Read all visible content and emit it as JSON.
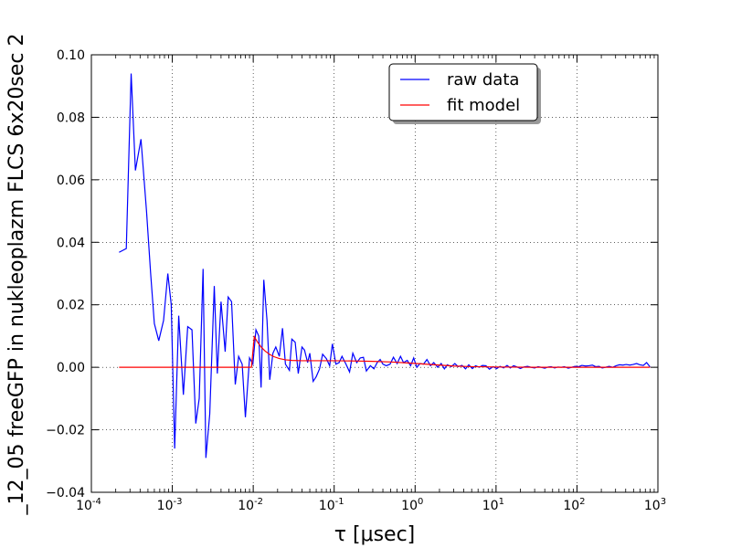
{
  "chart_data": {
    "type": "line",
    "title": "",
    "xlabel": "τ [μsec]",
    "ylabel": "_12_05 freeGFP in nukleoplazm FLCS 6x20sec 2",
    "xscale": "log",
    "xlim": [
      0.0001,
      1000
    ],
    "ylim": [
      -0.04,
      0.1
    ],
    "grid": true,
    "legend_position": "top-right",
    "x_ticks": [
      {
        "value": 0.0001,
        "base": "10",
        "exp": "-4"
      },
      {
        "value": 0.001,
        "base": "10",
        "exp": "-3"
      },
      {
        "value": 0.01,
        "base": "10",
        "exp": "-2"
      },
      {
        "value": 0.1,
        "base": "10",
        "exp": "-1"
      },
      {
        "value": 1,
        "base": "10",
        "exp": "0"
      },
      {
        "value": 10,
        "base": "10",
        "exp": "1"
      },
      {
        "value": 100,
        "base": "10",
        "exp": "2"
      },
      {
        "value": 1000,
        "base": "10",
        "exp": "3"
      }
    ],
    "y_ticks": [
      {
        "value": -0.04,
        "label": "−0.04"
      },
      {
        "value": -0.02,
        "label": "−0.02"
      },
      {
        "value": 0.0,
        "label": "0.00"
      },
      {
        "value": 0.02,
        "label": "0.02"
      },
      {
        "value": 0.04,
        "label": "0.04"
      },
      {
        "value": 0.06,
        "label": "0.06"
      },
      {
        "value": 0.08,
        "label": "0.08"
      },
      {
        "value": 0.1,
        "label": "0.10"
      }
    ],
    "series": [
      {
        "name": "raw data",
        "color": "#0000ff",
        "points": [
          [
            0.00022,
            0.0368
          ],
          [
            0.00027,
            0.038
          ],
          [
            0.00031,
            0.094
          ],
          [
            0.00035,
            0.063
          ],
          [
            0.00041,
            0.073
          ],
          [
            0.00048,
            0.05
          ],
          [
            0.00054,
            0.03
          ],
          [
            0.0006,
            0.014
          ],
          [
            0.00068,
            0.0085
          ],
          [
            0.00078,
            0.015
          ],
          [
            0.00088,
            0.03
          ],
          [
            0.00097,
            0.02
          ],
          [
            0.00107,
            -0.026
          ],
          [
            0.0012,
            0.0165
          ],
          [
            0.00137,
            -0.0088
          ],
          [
            0.00155,
            0.013
          ],
          [
            0.00175,
            0.012
          ],
          [
            0.00195,
            -0.018
          ],
          [
            0.00215,
            -0.01
          ],
          [
            0.0024,
            0.0315
          ],
          [
            0.0026,
            -0.029
          ],
          [
            0.0029,
            -0.015
          ],
          [
            0.0033,
            0.026
          ],
          [
            0.0036,
            -0.002
          ],
          [
            0.004,
            0.021
          ],
          [
            0.0045,
            0.005
          ],
          [
            0.0049,
            0.0225
          ],
          [
            0.0054,
            0.021
          ],
          [
            0.006,
            -0.0055
          ],
          [
            0.0066,
            0.0035
          ],
          [
            0.0073,
            0.001
          ],
          [
            0.008,
            -0.016
          ],
          [
            0.009,
            0.003
          ],
          [
            0.0099,
            0.001
          ],
          [
            0.0108,
            0.012
          ],
          [
            0.0117,
            0.01
          ],
          [
            0.0125,
            -0.0065
          ],
          [
            0.0135,
            0.028
          ],
          [
            0.0148,
            0.015
          ],
          [
            0.016,
            -0.004
          ],
          [
            0.0175,
            0.0045
          ],
          [
            0.019,
            0.0065
          ],
          [
            0.021,
            0.0035
          ],
          [
            0.023,
            0.0125
          ],
          [
            0.025,
            0.001
          ],
          [
            0.028,
            -0.001
          ],
          [
            0.03,
            0.009
          ],
          [
            0.033,
            0.008
          ],
          [
            0.036,
            -0.002
          ],
          [
            0.04,
            0.0065
          ],
          [
            0.043,
            0.0055
          ],
          [
            0.047,
            0.0015
          ],
          [
            0.05,
            0.0045
          ],
          [
            0.055,
            -0.0045
          ],
          [
            0.06,
            -0.003
          ],
          [
            0.066,
            -0.0005
          ],
          [
            0.072,
            0.0042
          ],
          [
            0.08,
            0.0028
          ],
          [
            0.088,
            0.0005
          ],
          [
            0.095,
            0.0075
          ],
          [
            0.105,
            0.001
          ],
          [
            0.115,
            0.0015
          ],
          [
            0.125,
            0.0035
          ],
          [
            0.14,
            0.001
          ],
          [
            0.155,
            -0.0015
          ],
          [
            0.17,
            0.0045
          ],
          [
            0.19,
            0.0015
          ],
          [
            0.21,
            0.003
          ],
          [
            0.23,
            0.0032
          ],
          [
            0.25,
            -0.0012
          ],
          [
            0.28,
            0.0005
          ],
          [
            0.31,
            -0.0005
          ],
          [
            0.34,
            0.0015
          ],
          [
            0.37,
            0.0025
          ],
          [
            0.4,
            0.001
          ],
          [
            0.44,
            0.0005
          ],
          [
            0.49,
            0.001
          ],
          [
            0.54,
            0.0032
          ],
          [
            0.6,
            0.0012
          ],
          [
            0.66,
            0.0035
          ],
          [
            0.72,
            0.0015
          ],
          [
            0.8,
            0.0022
          ],
          [
            0.88,
            0.0005
          ],
          [
            0.96,
            0.003
          ],
          [
            1.05,
            0.0
          ],
          [
            1.15,
            0.0012
          ],
          [
            1.27,
            0.001
          ],
          [
            1.4,
            0.0025
          ],
          [
            1.55,
            0.0005
          ],
          [
            1.7,
            0.0015
          ],
          [
            1.9,
            0.0
          ],
          [
            2.1,
            0.0012
          ],
          [
            2.3,
            -0.0005
          ],
          [
            2.5,
            0.0008
          ],
          [
            2.8,
            0.0002
          ],
          [
            3.1,
            0.0012
          ],
          [
            3.4,
            0.0002
          ],
          [
            3.8,
            0.0006
          ],
          [
            4.2,
            -0.0005
          ],
          [
            4.6,
            0.0008
          ],
          [
            5.1,
            -0.0004
          ],
          [
            5.6,
            0.0005
          ],
          [
            6.2,
            0.0
          ],
          [
            6.8,
            0.0006
          ],
          [
            7.5,
            0.0005
          ],
          [
            8.3,
            -0.0006
          ],
          [
            9.2,
            0.0002
          ],
          [
            10.2,
            -0.0004
          ],
          [
            11.2,
            0.0003
          ],
          [
            12.4,
            -0.0002
          ],
          [
            13.7,
            0.0006
          ],
          [
            15,
            -0.0002
          ],
          [
            16.5,
            0.0005
          ],
          [
            18.2,
            0.0001
          ],
          [
            20,
            -0.0004
          ],
          [
            22,
            0.0001
          ],
          [
            24.5,
            0.0003
          ],
          [
            27,
            0.0
          ],
          [
            30,
            -0.0002
          ],
          [
            33,
            0.0002
          ],
          [
            36,
            0.0
          ],
          [
            40,
            -0.0003
          ],
          [
            44,
            0.0001
          ],
          [
            48,
            0.0002
          ],
          [
            53,
            -0.0002
          ],
          [
            58,
            0.0001
          ],
          [
            64,
            0.0
          ],
          [
            70,
            0.0002
          ],
          [
            78,
            -0.0003
          ],
          [
            86,
            0.0
          ],
          [
            95,
            0.0003
          ],
          [
            105,
            0.0002
          ],
          [
            115,
            0.0006
          ],
          [
            128,
            0.0004
          ],
          [
            140,
            0.0005
          ],
          [
            155,
            0.0007
          ],
          [
            170,
            0.0002
          ],
          [
            188,
            0.0003
          ],
          [
            205,
            -0.0002
          ],
          [
            225,
            0.0
          ],
          [
            250,
            0.0003
          ],
          [
            275,
            0.0
          ],
          [
            305,
            0.0005
          ],
          [
            335,
            0.0008
          ],
          [
            370,
            0.0007
          ],
          [
            405,
            0.0009
          ],
          [
            450,
            0.0007
          ],
          [
            495,
            0.0009
          ],
          [
            545,
            0.0012
          ],
          [
            600,
            0.0008
          ],
          [
            660,
            0.0006
          ],
          [
            725,
            0.0015
          ],
          [
            800,
            0.0001
          ]
        ]
      },
      {
        "name": "fit model",
        "color": "#ff0000",
        "points": [
          [
            0.00022,
            0.0
          ],
          [
            0.00056,
            0.0
          ],
          [
            0.001,
            0.0
          ],
          [
            0.002,
            0.0
          ],
          [
            0.005,
            0.0
          ],
          [
            0.008,
            0.0
          ],
          [
            0.0095,
            0.0
          ],
          [
            0.0103,
            0.0098
          ],
          [
            0.0112,
            0.0082
          ],
          [
            0.0125,
            0.0065
          ],
          [
            0.014,
            0.0052
          ],
          [
            0.016,
            0.0041
          ],
          [
            0.018,
            0.0034
          ],
          [
            0.021,
            0.0028
          ],
          [
            0.025,
            0.0024
          ],
          [
            0.03,
            0.0022
          ],
          [
            0.04,
            0.0021
          ],
          [
            0.06,
            0.0021
          ],
          [
            0.1,
            0.0021
          ],
          [
            0.2,
            0.002
          ],
          [
            0.3,
            0.0019
          ],
          [
            0.5,
            0.0017
          ],
          [
            0.8,
            0.0014
          ],
          [
            1.2,
            0.0011
          ],
          [
            2,
            0.0007
          ],
          [
            3,
            0.0004
          ],
          [
            5,
            0.0002
          ],
          [
            10,
            0.0001
          ],
          [
            30,
            0.0
          ],
          [
            100,
            0.0
          ],
          [
            300,
            0.0
          ],
          [
            800,
            0.0
          ]
        ]
      }
    ]
  }
}
